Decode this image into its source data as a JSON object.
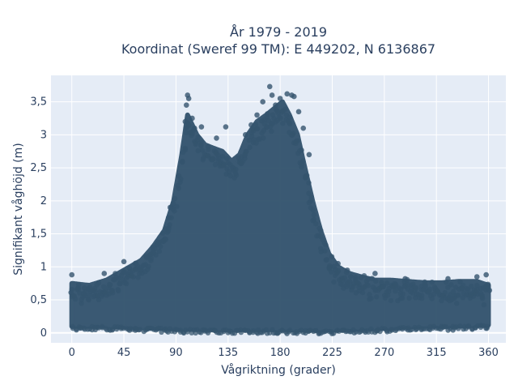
{
  "chart_data": {
    "type": "scatter",
    "title_lines": [
      "År 1979 - 2019",
      "Koordinat (Sweref 99 TM): E 449202, N 6136867"
    ],
    "xlabel": "Vågriktning (grader)",
    "ylabel": "Signifikant våghöjd (m)",
    "xlim": [
      -18,
      375
    ],
    "ylim": [
      -0.15,
      3.9
    ],
    "x_ticks": [
      0,
      45,
      90,
      135,
      180,
      225,
      270,
      315,
      360
    ],
    "x_tick_labels": [
      "0",
      "45",
      "90",
      "135",
      "180",
      "225",
      "270",
      "315",
      "360"
    ],
    "y_ticks": [
      0,
      0.5,
      1,
      1.5,
      2,
      2.5,
      3,
      3.5
    ],
    "y_tick_labels": [
      "0",
      "0,5",
      "1",
      "1,5",
      "2",
      "2,5",
      "3",
      "3,5"
    ],
    "grid": true,
    "colors": {
      "background": "#e5ecf6",
      "grid": "#ffffff",
      "marker": "#34546e",
      "text": "#2a3f5f"
    },
    "envelope": {
      "x": [
        0,
        15,
        30,
        45,
        60,
        70,
        80,
        88,
        95,
        100,
        108,
        115,
        122,
        130,
        138,
        145,
        152,
        160,
        168,
        175,
        182,
        188,
        195,
        200,
        208,
        215,
        222,
        230,
        240,
        250,
        262,
        275,
        290,
        305,
        320,
        335,
        350,
        360
      ],
      "y": [
        0.75,
        0.72,
        0.8,
        0.95,
        1.1,
        1.3,
        1.55,
        2.0,
        2.7,
        3.3,
        3.0,
        2.85,
        2.8,
        2.75,
        2.6,
        2.7,
        3.0,
        3.2,
        3.3,
        3.4,
        3.5,
        3.3,
        3.0,
        2.6,
        2.0,
        1.55,
        1.2,
        1.0,
        0.9,
        0.85,
        0.8,
        0.8,
        0.78,
        0.76,
        0.76,
        0.78,
        0.78,
        0.72
      ]
    },
    "floor": {
      "x": [
        0,
        30,
        60,
        90,
        120,
        150,
        180,
        210,
        240,
        270,
        300,
        330,
        360
      ],
      "y": [
        0.1,
        0.1,
        0.08,
        0.06,
        0.05,
        0.05,
        0.05,
        0.04,
        0.05,
        0.07,
        0.1,
        0.1,
        0.12
      ]
    },
    "points": [
      {
        "x": 100,
        "y": 3.6
      },
      {
        "x": 101,
        "y": 3.55
      },
      {
        "x": 99,
        "y": 3.45
      },
      {
        "x": 104,
        "y": 3.25
      },
      {
        "x": 98,
        "y": 3.2
      },
      {
        "x": 106,
        "y": 3.1
      },
      {
        "x": 112,
        "y": 3.12
      },
      {
        "x": 133,
        "y": 3.12
      },
      {
        "x": 125,
        "y": 2.95
      },
      {
        "x": 165,
        "y": 3.5
      },
      {
        "x": 171,
        "y": 3.73
      },
      {
        "x": 173,
        "y": 3.6
      },
      {
        "x": 186,
        "y": 3.62
      },
      {
        "x": 190,
        "y": 3.6
      },
      {
        "x": 192,
        "y": 3.58
      },
      {
        "x": 180,
        "y": 3.55
      },
      {
        "x": 176,
        "y": 3.45
      },
      {
        "x": 196,
        "y": 3.35
      },
      {
        "x": 160,
        "y": 3.3
      },
      {
        "x": 155,
        "y": 3.15
      },
      {
        "x": 200,
        "y": 3.1
      },
      {
        "x": 150,
        "y": 3.0
      },
      {
        "x": 205,
        "y": 2.7
      },
      {
        "x": 85,
        "y": 1.9
      },
      {
        "x": 70,
        "y": 1.3
      },
      {
        "x": 55,
        "y": 1.05
      },
      {
        "x": 45,
        "y": 1.08
      },
      {
        "x": 0,
        "y": 0.88
      },
      {
        "x": 28,
        "y": 0.9
      },
      {
        "x": 238,
        "y": 0.95
      },
      {
        "x": 262,
        "y": 0.9
      },
      {
        "x": 288,
        "y": 0.82
      },
      {
        "x": 325,
        "y": 0.82
      },
      {
        "x": 350,
        "y": 0.85
      },
      {
        "x": 358,
        "y": 0.88
      },
      {
        "x": 230,
        "y": 1.05
      }
    ]
  }
}
